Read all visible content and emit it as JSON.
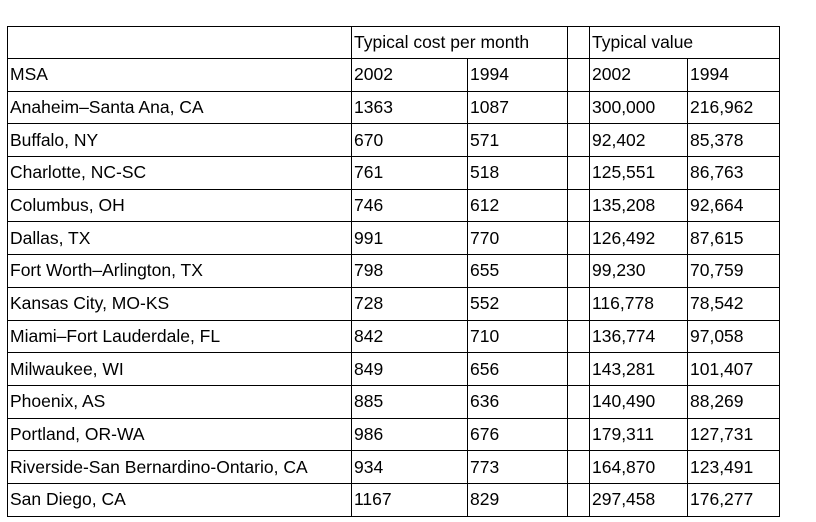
{
  "group_headers": {
    "cost": "Typical cost per month",
    "value": "Typical value"
  },
  "column_headers": {
    "msa": "MSA",
    "cost_2002": "2002",
    "cost_1994": "1994",
    "value_2002": "2002",
    "value_1994": "1994"
  },
  "rows": [
    {
      "msa": "Anaheim–Santa Ana, CA",
      "cost_2002": "1363",
      "cost_1994": "1087",
      "value_2002": "300,000",
      "value_1994": "216,962"
    },
    {
      "msa": "Buffalo, NY",
      "cost_2002": "670",
      "cost_1994": "571",
      "value_2002": "92,402",
      "value_1994": "85,378"
    },
    {
      "msa": "Charlotte, NC-SC",
      "cost_2002": "761",
      "cost_1994": "518",
      "value_2002": "125,551",
      "value_1994": "86,763"
    },
    {
      "msa": "Columbus, OH",
      "cost_2002": "746",
      "cost_1994": "612",
      "value_2002": "135,208",
      "value_1994": "92,664"
    },
    {
      "msa": "Dallas, TX",
      "cost_2002": "991",
      "cost_1994": "770",
      "value_2002": "126,492",
      "value_1994": "87,615"
    },
    {
      "msa": "Fort Worth–Arlington, TX",
      "cost_2002": "798",
      "cost_1994": "655",
      "value_2002": "99,230",
      "value_1994": "70,759"
    },
    {
      "msa": "Kansas City, MO-KS",
      "cost_2002": "728",
      "cost_1994": "552",
      "value_2002": "116,778",
      "value_1994": "78,542"
    },
    {
      "msa": "Miami–Fort Lauderdale, FL",
      "cost_2002": "842",
      "cost_1994": "710",
      "value_2002": "136,774",
      "value_1994": "97,058"
    },
    {
      "msa": "Milwaukee, WI",
      "cost_2002": "849",
      "cost_1994": "656",
      "value_2002": "143,281",
      "value_1994": "101,407"
    },
    {
      "msa": "Phoenix, AS",
      "cost_2002": "885",
      "cost_1994": "636",
      "value_2002": "140,490",
      "value_1994": "88,269"
    },
    {
      "msa": "Portland, OR-WA",
      "cost_2002": "986",
      "cost_1994": "676",
      "value_2002": "179,311",
      "value_1994": "127,731"
    },
    {
      "msa": "Riverside-San Bernardino-Ontario, CA",
      "cost_2002": "934",
      "cost_1994": "773",
      "value_2002": "164,870",
      "value_1994": "123,491"
    },
    {
      "msa": "San Diego, CA",
      "cost_2002": "1167",
      "cost_1994": "829",
      "value_2002": "297,458",
      "value_1994": "176,277"
    }
  ]
}
